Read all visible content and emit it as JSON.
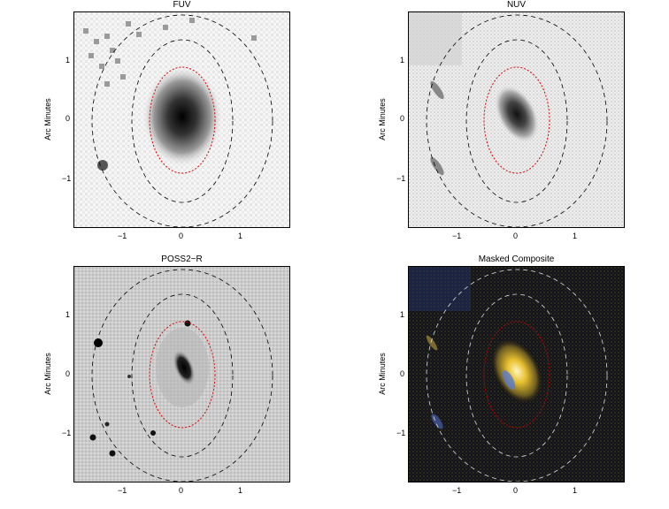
{
  "ylabel": "Arc Minutes",
  "x_ticks": [
    "−1",
    "0",
    "1"
  ],
  "y_ticks": [
    "1",
    "0",
    "−1"
  ],
  "panels": [
    {
      "title": "FUV"
    },
    {
      "title": "NUV"
    },
    {
      "title": "POSS2−R"
    },
    {
      "title": "Masked Composite"
    }
  ]
}
